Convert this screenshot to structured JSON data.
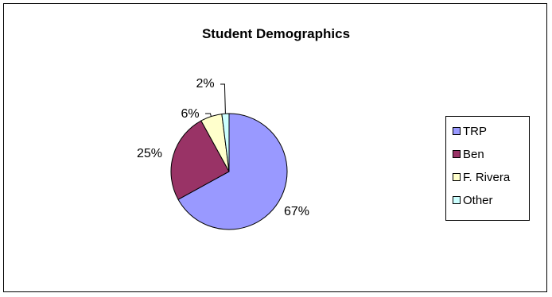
{
  "chart_data": {
    "type": "pie",
    "title": "Student Demographics",
    "categories": [
      "TRP",
      "Ben",
      "F. Rivera",
      "Other"
    ],
    "values": [
      67,
      25,
      6,
      2
    ],
    "data_labels": [
      "67%",
      "25%",
      "6%",
      "2%"
    ],
    "colors": [
      "#9999ff",
      "#993366",
      "#ffffcc",
      "#ccffff"
    ],
    "legend": "right"
  }
}
